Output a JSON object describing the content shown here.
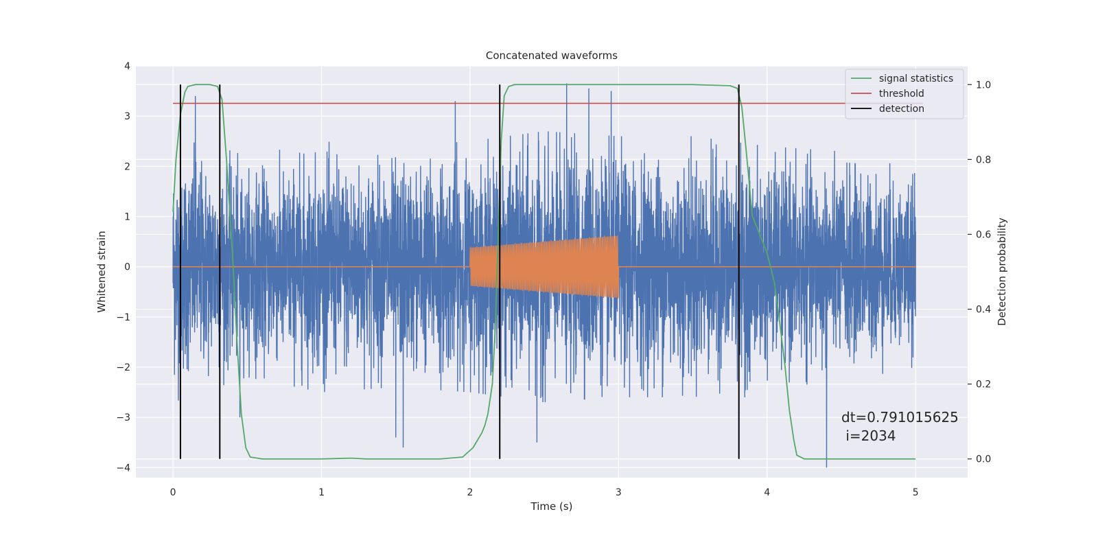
{
  "chart_data": {
    "type": "line",
    "title": "Concatenated waveforms",
    "xlabel": "Time (s)",
    "ylabel": "Whitened strain",
    "y2label": "Detection probability",
    "xlim": [
      -0.25,
      5.35
    ],
    "ylim": [
      -4.2,
      4.0
    ],
    "y2lim": [
      -0.05,
      1.05
    ],
    "xticks": [
      0,
      1,
      2,
      3,
      4,
      5
    ],
    "yticks": [
      -4,
      -3,
      -2,
      -1,
      0,
      1,
      2,
      3,
      4
    ],
    "y2ticks": [
      0.0,
      0.2,
      0.4,
      0.6,
      0.8,
      1.0
    ],
    "xtick_labels": [
      "0",
      "1",
      "2",
      "3",
      "4",
      "5"
    ],
    "ytick_labels": [
      "−4",
      "−3",
      "−2",
      "−1",
      "0",
      "1",
      "2",
      "3",
      "4"
    ],
    "y2tick_labels": [
      "0.0",
      "0.2",
      "0.4",
      "0.6",
      "0.8",
      "1.0"
    ],
    "grid": true,
    "legend_position": "top-right",
    "colors": {
      "background": "#eaeaf2",
      "grid": "#ffffff",
      "strain": "#4c72b0",
      "injected": "#dd8452",
      "signal_statistics": "#55a868",
      "threshold": "#c44e52",
      "detection": "#000000"
    },
    "series": [
      {
        "name": "",
        "axis": "left",
        "kind": "noise",
        "x_range": [
          0,
          5
        ],
        "sample_rate": 1024,
        "envelope": [
          [
            0.0,
            2.5
          ],
          [
            0.5,
            2.0
          ],
          [
            1.0,
            2.3
          ],
          [
            1.5,
            2.2
          ],
          [
            2.0,
            2.3
          ],
          [
            2.5,
            2.5
          ],
          [
            3.0,
            2.4
          ],
          [
            3.5,
            2.4
          ],
          [
            4.0,
            2.2
          ],
          [
            4.5,
            2.1
          ],
          [
            5.0,
            1.8
          ]
        ],
        "peaks": [
          [
            0.15,
            3.4
          ],
          [
            0.45,
            -3.0
          ],
          [
            1.5,
            -3.4
          ],
          [
            1.55,
            -3.6
          ],
          [
            2.45,
            -3.5
          ],
          [
            2.65,
            3.65
          ],
          [
            2.8,
            3.55
          ],
          [
            2.95,
            3.5
          ],
          [
            1.9,
            3.3
          ],
          [
            4.4,
            -4.0
          ],
          [
            3.85,
            -2.6
          ]
        ]
      },
      {
        "name": "",
        "axis": "left",
        "kind": "chirp",
        "x_range": [
          2.0,
          3.0
        ],
        "amplitude_start": 0.38,
        "amplitude_end": 0.62,
        "cycles": 90,
        "baseline": 0
      },
      {
        "name": "signal statistics",
        "axis": "right",
        "x": [
          0.0,
          0.02,
          0.05,
          0.08,
          0.1,
          0.15,
          0.25,
          0.3,
          0.33,
          0.36,
          0.4,
          0.43,
          0.46,
          0.49,
          0.52,
          0.6,
          1.0,
          1.2,
          1.3,
          1.8,
          1.95,
          2.02,
          2.08,
          2.1,
          2.12,
          2.15,
          2.17,
          2.19,
          2.21,
          2.23,
          2.26,
          2.3,
          2.5,
          3.0,
          3.5,
          3.75,
          3.8,
          3.83,
          3.86,
          3.9,
          3.95,
          4.0,
          4.05,
          4.08,
          4.12,
          4.15,
          4.18,
          4.2,
          4.25,
          5.0
        ],
        "y": [
          0.66,
          0.8,
          0.92,
          0.98,
          0.995,
          1.0,
          1.0,
          0.995,
          0.96,
          0.8,
          0.55,
          0.32,
          0.12,
          0.03,
          0.005,
          0.0,
          0.0,
          0.002,
          0.0,
          0.0,
          0.005,
          0.03,
          0.07,
          0.09,
          0.12,
          0.2,
          0.35,
          0.6,
          0.85,
          0.97,
          0.995,
          1.0,
          1.0,
          1.0,
          1.0,
          0.997,
          0.99,
          0.94,
          0.82,
          0.65,
          0.6,
          0.55,
          0.47,
          0.38,
          0.25,
          0.13,
          0.05,
          0.01,
          0.0,
          0.0
        ]
      },
      {
        "name": "threshold",
        "axis": "right",
        "value": 0.95,
        "x_range": [
          0,
          5.05
        ]
      },
      {
        "name": "detection",
        "axis": "right",
        "x": [
          0.05,
          0.315,
          2.2,
          3.81
        ],
        "y_range": [
          0.0,
          1.0
        ]
      }
    ],
    "annotation": {
      "line1": "dt=0.791015625",
      "line2": " i=2034"
    }
  }
}
